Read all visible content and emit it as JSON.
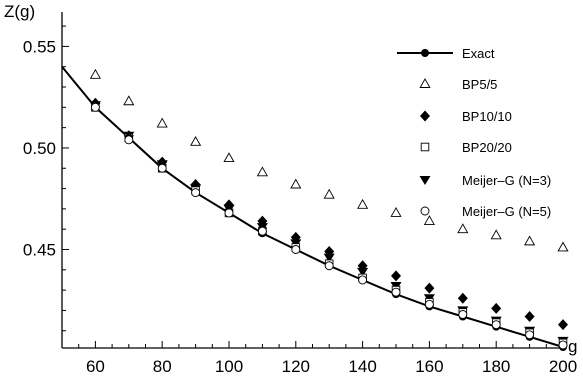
{
  "chart_data": {
    "type": "scatter",
    "ylabel": "Z(g)",
    "xlabel": "g",
    "xlim": [
      50,
      200
    ],
    "ylim": [
      0.4015,
      0.563
    ],
    "xticks": [
      60,
      80,
      100,
      120,
      140,
      160,
      180,
      200
    ],
    "yticks": [
      0.45,
      0.5,
      0.55
    ],
    "xtick_labels": [
      "60",
      "80",
      "100",
      "120",
      "140",
      "160",
      "180",
      "200"
    ],
    "ytick_labels": [
      "0.45",
      "0.50",
      "0.55"
    ],
    "legend_position": "top-right",
    "grid": false,
    "x": [
      60,
      70,
      80,
      90,
      100,
      110,
      120,
      130,
      140,
      150,
      160,
      170,
      180,
      190,
      200
    ],
    "series": [
      {
        "name": "Exact",
        "marker": "line-dot",
        "x": [
          50,
          60,
          70,
          80,
          90,
          100,
          110,
          120,
          130,
          140,
          150,
          160,
          170,
          180,
          190,
          200
        ],
        "values": [
          0.54,
          0.52,
          0.505,
          0.49,
          0.478,
          0.468,
          0.458,
          0.45,
          0.442,
          0.435,
          0.428,
          0.422,
          0.417,
          0.412,
          0.407,
          0.402
        ]
      },
      {
        "name": "BP5/5",
        "marker": "triangle-up-open",
        "values": [
          0.536,
          0.523,
          0.512,
          0.503,
          0.495,
          0.488,
          0.482,
          0.477,
          0.472,
          0.468,
          0.464,
          0.46,
          0.457,
          0.454,
          0.451
        ]
      },
      {
        "name": "BP10/10",
        "marker": "diamond-filled",
        "values": [
          0.522,
          0.506,
          0.493,
          0.482,
          0.472,
          0.464,
          0.456,
          0.449,
          0.442,
          0.437,
          0.431,
          0.426,
          0.421,
          0.417,
          0.413
        ]
      },
      {
        "name": "BP20/20",
        "marker": "square-open",
        "values": [
          0.52,
          0.505,
          0.49,
          0.479,
          0.468,
          0.459,
          0.451,
          0.443,
          0.436,
          0.43,
          0.424,
          0.419,
          0.414,
          0.409,
          0.404
        ]
      },
      {
        "name": "Meijer–G (N=3)",
        "marker": "triangle-down-filled",
        "values": [
          0.521,
          0.506,
          0.492,
          0.48,
          0.47,
          0.461,
          0.453,
          0.446,
          0.439,
          0.432,
          0.426,
          0.42,
          0.415,
          0.41,
          0.405
        ]
      },
      {
        "name": "Meijer–G (N=5)",
        "marker": "circle-open",
        "values": [
          0.52,
          0.504,
          0.49,
          0.478,
          0.468,
          0.459,
          0.45,
          0.442,
          0.435,
          0.429,
          0.423,
          0.418,
          0.413,
          0.408,
          0.403
        ]
      }
    ]
  }
}
